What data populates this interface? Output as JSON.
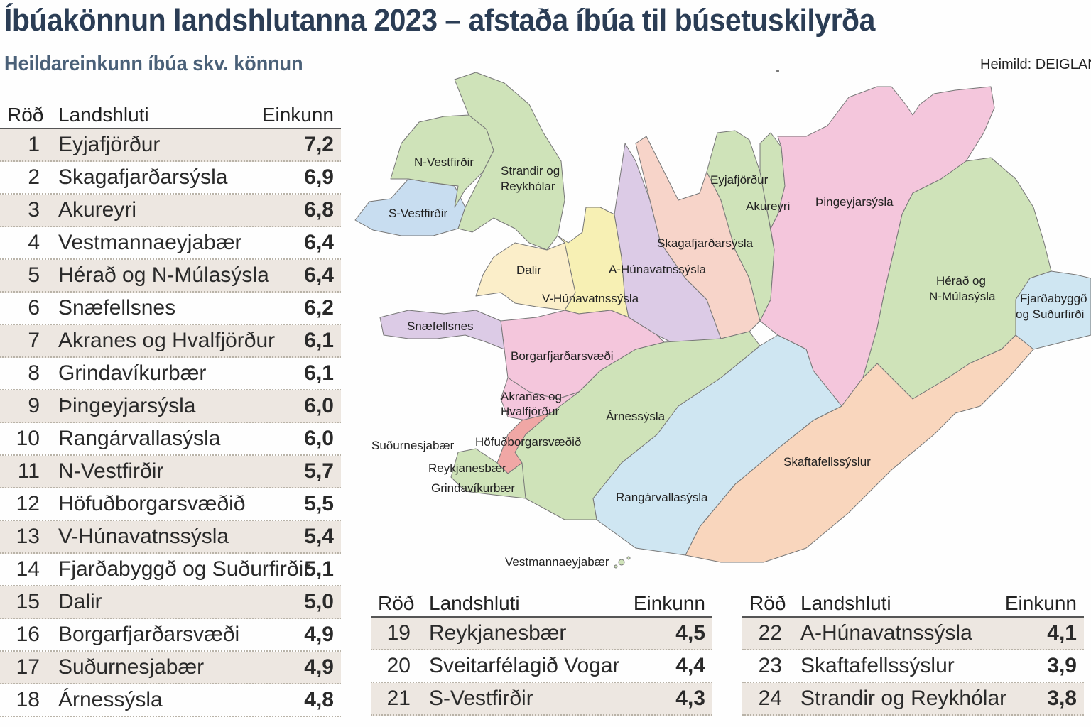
{
  "title": "Íbúakönnun landshlutanna 2023 – afstaða íbúa til búsetuskilyrða",
  "subtitle": "Heildareinkunn íbúa skv. könnun",
  "source": "Heimild: DEIGLAN",
  "table_headers": {
    "rank": "Röð",
    "region": "Landshluti",
    "score": "Einkunn"
  },
  "chart_data": {
    "type": "table",
    "columns": [
      "Röð",
      "Landshluti",
      "Einkunn"
    ],
    "rows": [
      {
        "rank": "1",
        "region": "Eyjafjörður",
        "score": "7,2"
      },
      {
        "rank": "2",
        "region": "Skagafjarðarsýsla",
        "score": "6,9"
      },
      {
        "rank": "3",
        "region": "Akureyri",
        "score": "6,8"
      },
      {
        "rank": "4",
        "region": "Vestmannaeyjabær",
        "score": "6,4"
      },
      {
        "rank": "5",
        "region": "Hérað og N-Múlasýsla",
        "score": "6,4"
      },
      {
        "rank": "6",
        "region": "Snæfellsnes",
        "score": "6,2"
      },
      {
        "rank": "7",
        "region": "Akranes og Hvalfjörður",
        "score": "6,1"
      },
      {
        "rank": "8",
        "region": "Grindavíkurbær",
        "score": "6,1"
      },
      {
        "rank": "9",
        "region": "Þingeyjarsýsla",
        "score": "6,0"
      },
      {
        "rank": "10",
        "region": "Rangárvallasýsla",
        "score": "6,0"
      },
      {
        "rank": "11",
        "region": "N-Vestfirðir",
        "score": "5,7"
      },
      {
        "rank": "12",
        "region": "Höfuðborgarsvæðið",
        "score": "5,5"
      },
      {
        "rank": "13",
        "region": "V-Húnavatnssýsla",
        "score": "5,4"
      },
      {
        "rank": "14",
        "region": "Fjarðabyggð og Suðurfirðir",
        "score": "5,1"
      },
      {
        "rank": "15",
        "region": "Dalir",
        "score": "5,0"
      },
      {
        "rank": "16",
        "region": "Borgarfjarðarsvæði",
        "score": "4,9"
      },
      {
        "rank": "17",
        "region": "Suðurnesjabær",
        "score": "4,9"
      },
      {
        "rank": "18",
        "region": "Árnessýsla",
        "score": "4,8"
      },
      {
        "rank": "19",
        "region": "Reykjanesbær",
        "score": "4,5"
      },
      {
        "rank": "20",
        "region": "Sveitarfélagið Vogar",
        "score": "4,4"
      },
      {
        "rank": "21",
        "region": "S-Vestfirðir",
        "score": "4,3"
      },
      {
        "rank": "22",
        "region": "A-Húnavatnssýsla",
        "score": "4,1"
      },
      {
        "rank": "23",
        "region": "Skaftafellssýslur",
        "score": "3,9"
      },
      {
        "rank": "24",
        "region": "Strandir og Reykhólar",
        "score": "3,8"
      }
    ]
  },
  "map_labels": {
    "n_vestfirdir": "N-Vestfirðir",
    "strandir_1": "Strandir og",
    "strandir_2": "Reykhólar",
    "s_vestfirdir": "S-Vestfirðir",
    "eyjafjordur": "Eyjafjörður",
    "akureyri": "Akureyri",
    "thingeyjarsysla": "Þingeyjarsýsla",
    "skagafjardarsysla": "Skagafjarðarsýsla",
    "dalir": "Dalir",
    "a_hunavatnssysla": "A-Húnavatnssýsla",
    "v_hunavatnssysla": "V-Húnavatnssýsla",
    "herad_1": "Hérað og",
    "herad_2": "N-Múlasýsla",
    "fjardabyggd_1": "Fjarðabyggð",
    "fjardabyggd_2": "og Suðurfirði",
    "snaefellsnes": "Snæfellsnes",
    "borgarfjardarsvaedi": "Borgarfjarðarsvæði",
    "akranes_1": "Akranes og",
    "akranes_2": "Hvalfjörður",
    "arnessysla": "Árnessýsla",
    "sudurnesjabaer": "Suðurnesjabær",
    "hofudborgarsvaedid": "Höfuðborgarsvæðið",
    "reykjanesbaer": "Reykjanesbær",
    "grindavikurbaer": "Grindavíkurbær",
    "skaftafellssyslur": "Skaftafellssýslur",
    "rangarvallasysla": "Rangárvallasýsla",
    "vestmannaeyjabaer": "Vestmannaeyjabær"
  },
  "colors": {
    "title": "#2b3d55",
    "subtitle": "#4a6078",
    "row_shade": "#ede7e1",
    "green": "#cfe3b9",
    "pink": "#f4c6dc",
    "salmon": "#f7d4c9",
    "lavender": "#dccbe6",
    "yellow": "#f7f0b4",
    "cream": "#fbeec9",
    "blue": "#c8ddf0",
    "lightblue": "#cfe6f2",
    "peach": "#f9d6bd",
    "red": "#f0a7a5"
  }
}
